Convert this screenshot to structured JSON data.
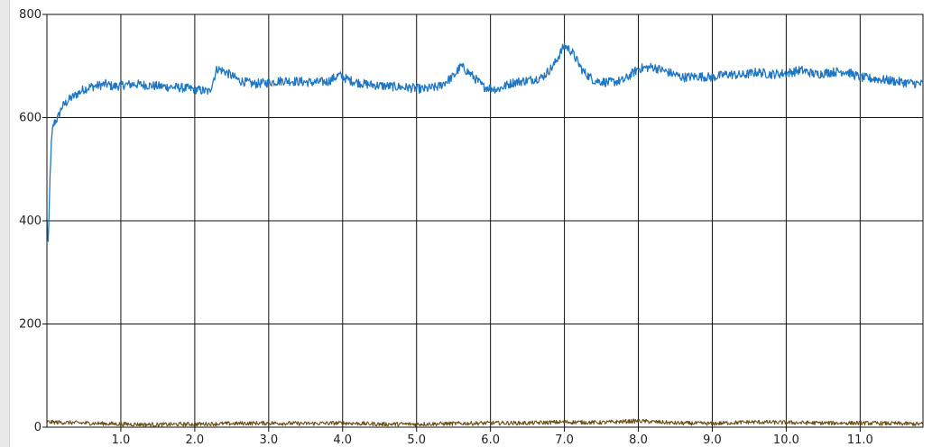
{
  "chart_data": {
    "type": "line",
    "title": "",
    "xlabel": "",
    "ylabel": "",
    "xlim": [
      0,
      11.85
    ],
    "ylim": [
      0,
      800
    ],
    "grid": true,
    "legend": "none",
    "x_ticks": [
      1.0,
      2.0,
      3.0,
      4.0,
      5.0,
      6.0,
      7.0,
      8.0,
      9.0,
      10.0,
      11.0
    ],
    "x_tick_labels": [
      "1.0",
      "2.0",
      "3.0",
      "4.0",
      "5.0",
      "6.0",
      "7.0",
      "8.0",
      "9.0",
      "10.0",
      "11.0"
    ],
    "y_ticks": [
      0,
      200,
      400,
      600,
      800
    ],
    "y_tick_labels": [
      "0",
      "200",
      "400",
      "600",
      "800"
    ],
    "series": [
      {
        "color": "#1f77c4",
        "x": [
          0.0,
          0.02,
          0.04,
          0.06,
          0.08,
          0.1,
          0.15,
          0.2,
          0.3,
          0.4,
          0.5,
          0.6,
          0.7,
          0.8,
          0.9,
          1.0,
          1.2,
          1.4,
          1.6,
          1.8,
          2.0,
          2.2,
          2.3,
          2.4,
          2.6,
          2.8,
          3.0,
          3.2,
          3.4,
          3.6,
          3.8,
          3.95,
          4.1,
          4.3,
          4.5,
          4.7,
          4.9,
          5.1,
          5.3,
          5.5,
          5.6,
          5.75,
          5.9,
          6.1,
          6.3,
          6.5,
          6.7,
          6.85,
          7.0,
          7.1,
          7.25,
          7.4,
          7.6,
          7.8,
          8.0,
          8.2,
          8.4,
          8.6,
          8.8,
          9.0,
          9.2,
          9.4,
          9.6,
          9.8,
          10.0,
          10.2,
          10.4,
          10.6,
          10.8,
          11.0,
          11.2,
          11.4,
          11.6,
          11.85
        ],
        "y": [
          400,
          350,
          480,
          550,
          580,
          590,
          600,
          620,
          635,
          645,
          655,
          660,
          662,
          665,
          660,
          663,
          665,
          662,
          660,
          658,
          655,
          650,
          695,
          690,
          672,
          665,
          668,
          672,
          670,
          668,
          670,
          682,
          672,
          665,
          662,
          660,
          658,
          655,
          660,
          680,
          700,
          682,
          660,
          655,
          668,
          672,
          678,
          700,
          740,
          728,
          690,
          672,
          668,
          672,
          695,
          698,
          688,
          678,
          680,
          678,
          684,
          682,
          688,
          684,
          686,
          692,
          684,
          688,
          690,
          678,
          675,
          672,
          668,
          665
        ]
      },
      {
        "color": "#6b4e16",
        "x": [
          0.0,
          0.5,
          1.0,
          1.5,
          2.0,
          2.5,
          3.0,
          3.5,
          4.0,
          4.5,
          5.0,
          5.5,
          6.0,
          6.5,
          7.0,
          7.5,
          8.0,
          8.5,
          9.0,
          9.5,
          10.0,
          10.5,
          11.0,
          11.5,
          11.85
        ],
        "y": [
          10,
          8,
          6,
          5,
          6,
          7,
          8,
          7,
          8,
          6,
          6,
          7,
          8,
          8,
          10,
          9,
          12,
          8,
          7,
          10,
          9,
          8,
          8,
          7,
          6
        ]
      }
    ]
  }
}
